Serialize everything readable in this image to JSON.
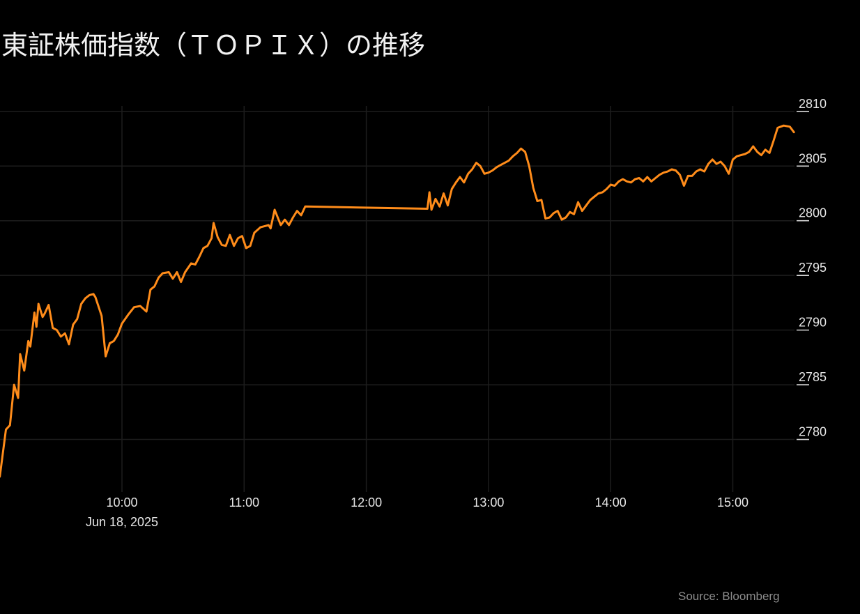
{
  "chart_data": {
    "type": "line",
    "title": "東証株価指数（ＴＯＰＩＸ）の推移",
    "xlabel": "",
    "ylabel": "",
    "date_label": "Jun 18, 2025",
    "x_ticks": [
      "10:00",
      "11:00",
      "12:00",
      "13:00",
      "14:00",
      "15:00"
    ],
    "y_ticks": [
      2780,
      2785,
      2790,
      2795,
      2800,
      2805,
      2810
    ],
    "ylim": [
      2776.4,
      2810.5
    ],
    "grid": true,
    "series": [
      {
        "color": "#ff8c1a",
        "x": [
          "09:00",
          "09:03",
          "09:05",
          "09:07",
          "09:09",
          "09:10",
          "09:12",
          "09:14",
          "09:15",
          "09:17",
          "09:18",
          "09:19",
          "09:21",
          "09:22",
          "09:24",
          "09:26",
          "09:28",
          "09:30",
          "09:32",
          "09:34",
          "09:36",
          "09:38",
          "09:40",
          "09:42",
          "09:44",
          "09:46",
          "09:47",
          "09:50",
          "09:52",
          "09:54",
          "09:56",
          "09:58",
          "10:00",
          "10:03",
          "10:06",
          "10:09",
          "10:12",
          "10:14",
          "10:16",
          "10:18",
          "10:20",
          "10:23",
          "10:25",
          "10:27",
          "10:29",
          "10:31",
          "10:34",
          "10:36",
          "10:38",
          "10:40",
          "10:42",
          "10:44",
          "10:45",
          "10:47",
          "10:49",
          "10:51",
          "10:53",
          "10:55",
          "10:57",
          "10:59",
          "11:01",
          "11:03",
          "11:05",
          "11:08",
          "11:10",
          "11:12",
          "11:13",
          "11:15",
          "11:18",
          "11:20",
          "11:22",
          "11:24",
          "11:26",
          "11:28",
          "11:30",
          "12:30",
          "12:31",
          "12:32",
          "12:34",
          "12:36",
          "12:38",
          "12:40",
          "12:42",
          "12:44",
          "12:46",
          "12:48",
          "12:50",
          "12:52",
          "12:54",
          "12:56",
          "12:58",
          "13:00",
          "13:02",
          "13:04",
          "13:06",
          "13:08",
          "13:10",
          "13:12",
          "13:14",
          "13:16",
          "13:18",
          "13:20",
          "13:22",
          "13:24",
          "13:26",
          "13:28",
          "13:30",
          "13:32",
          "13:34",
          "13:36",
          "13:38",
          "13:40",
          "13:42",
          "13:44",
          "13:46",
          "13:48",
          "13:50",
          "13:52",
          "13:54",
          "13:56",
          "13:58",
          "14:00",
          "14:02",
          "14:04",
          "14:06",
          "14:08",
          "14:10",
          "14:12",
          "14:14",
          "14:16",
          "14:18",
          "14:20",
          "14:22",
          "14:24",
          "14:26",
          "14:28",
          "14:30",
          "14:32",
          "14:34",
          "14:36",
          "14:38",
          "14:40",
          "14:42",
          "14:44",
          "14:46",
          "14:48",
          "14:50",
          "14:52",
          "14:54",
          "14:56",
          "14:58",
          "15:00",
          "15:02",
          "15:04",
          "15:06",
          "15:08",
          "15:10",
          "15:12",
          "15:14",
          "15:16",
          "15:18",
          "15:20",
          "15:22",
          "15:25",
          "15:28",
          "15:30"
        ],
        "values": [
          2776.6,
          2780.9,
          2781.3,
          2785.0,
          2783.8,
          2787.8,
          2786.3,
          2789.0,
          2788.5,
          2791.6,
          2790.3,
          2792.4,
          2791.2,
          2791.5,
          2792.3,
          2790.2,
          2790.0,
          2789.4,
          2789.7,
          2788.7,
          2790.5,
          2791.0,
          2792.4,
          2792.9,
          2793.2,
          2793.3,
          2793.0,
          2791.3,
          2787.6,
          2788.8,
          2789.0,
          2789.6,
          2790.6,
          2791.4,
          2792.1,
          2792.2,
          2791.7,
          2793.7,
          2794.0,
          2794.8,
          2795.2,
          2795.3,
          2794.7,
          2795.3,
          2794.4,
          2795.3,
          2796.1,
          2796.0,
          2796.7,
          2797.5,
          2797.7,
          2798.4,
          2799.8,
          2798.5,
          2797.8,
          2797.7,
          2798.7,
          2797.7,
          2798.4,
          2798.6,
          2797.5,
          2797.7,
          2798.9,
          2799.4,
          2799.5,
          2799.6,
          2799.3,
          2801.0,
          2799.6,
          2800.1,
          2799.6,
          2800.3,
          2800.9,
          2800.5,
          2801.3,
          2801.1,
          2802.6,
          2801.0,
          2802.0,
          2801.3,
          2802.5,
          2801.4,
          2802.9,
          2803.5,
          2804.0,
          2803.5,
          2804.3,
          2804.7,
          2805.3,
          2805.0,
          2804.3,
          2804.4,
          2804.6,
          2804.9,
          2805.1,
          2805.3,
          2805.5,
          2805.9,
          2806.2,
          2806.6,
          2806.3,
          2805.0,
          2803.0,
          2801.8,
          2801.9,
          2800.2,
          2800.3,
          2800.7,
          2800.9,
          2800.1,
          2800.3,
          2800.8,
          2800.6,
          2801.7,
          2800.9,
          2801.4,
          2801.9,
          2802.2,
          2802.5,
          2802.6,
          2802.9,
          2803.3,
          2803.2,
          2803.6,
          2803.8,
          2803.6,
          2803.5,
          2803.8,
          2803.9,
          2803.6,
          2804.0,
          2803.6,
          2803.9,
          2804.2,
          2804.4,
          2804.5,
          2804.7,
          2804.6,
          2804.2,
          2803.2,
          2804.1,
          2804.1,
          2804.5,
          2804.7,
          2804.5,
          2805.2,
          2805.6,
          2805.2,
          2805.4,
          2805.0,
          2804.3,
          2805.6,
          2805.9,
          2806.0,
          2806.1,
          2806.3,
          2806.8,
          2806.3,
          2806.0,
          2806.5,
          2806.2,
          2807.3,
          2808.5,
          2808.7,
          2808.6,
          2808.1
        ]
      }
    ],
    "source": "Source: Bloomberg"
  }
}
